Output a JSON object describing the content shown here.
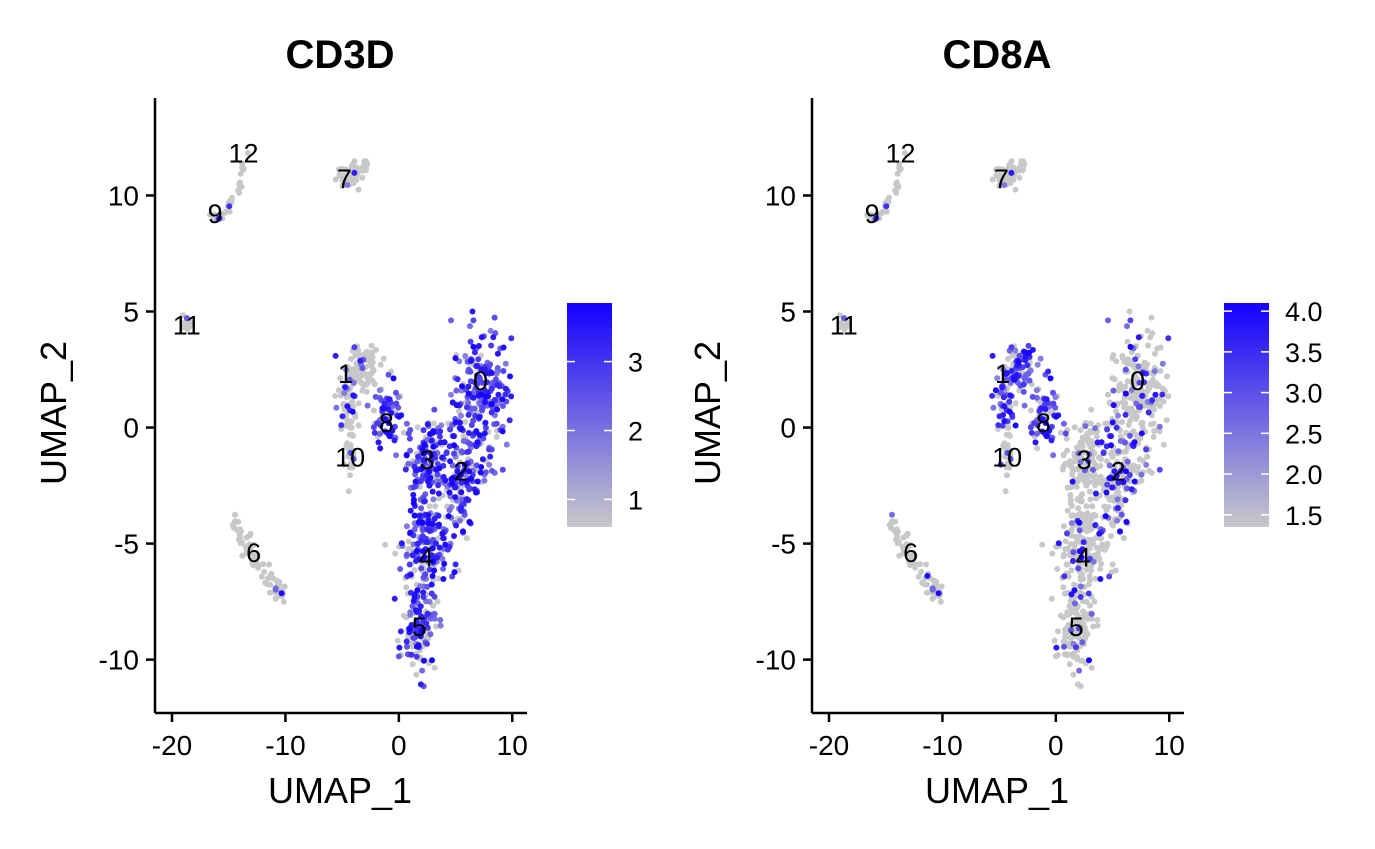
{
  "chart_data": [
    {
      "type": "scatter",
      "title": "CD3D",
      "xlabel": "UMAP_1",
      "ylabel": "UMAP_2",
      "xlim": [
        -21.5,
        11.3
      ],
      "ylim": [
        -12.3,
        14.2
      ],
      "xticks": [
        -20,
        -10,
        0,
        10
      ],
      "xtick_labels": [
        "-20",
        "-10",
        "0",
        "10"
      ],
      "yticks": [
        -10,
        -5,
        0,
        5,
        10
      ],
      "ytick_labels": [
        "-10",
        "-5",
        "0",
        "5",
        "10"
      ],
      "grid": false,
      "point_color_low": "#c8c8c8",
      "point_color_high": "#1400ff",
      "expression_range": [
        0.6,
        3.85
      ],
      "legend": {
        "position": "right",
        "ticks": [
          1,
          2,
          3
        ],
        "tick_labels": [
          "1",
          "2",
          "3"
        ]
      },
      "cluster_labels": [
        {
          "label": "0",
          "x": 7.2,
          "y": 2.0
        },
        {
          "label": "1",
          "x": -4.7,
          "y": 2.3
        },
        {
          "label": "2",
          "x": 5.5,
          "y": -1.9
        },
        {
          "label": "3",
          "x": 2.5,
          "y": -1.4
        },
        {
          "label": "4",
          "x": 2.4,
          "y": -5.6
        },
        {
          "label": "5",
          "x": 1.8,
          "y": -8.6
        },
        {
          "label": "6",
          "x": -12.8,
          "y": -5.4
        },
        {
          "label": "7",
          "x": -4.8,
          "y": 10.7
        },
        {
          "label": "8",
          "x": -1.1,
          "y": 0.2
        },
        {
          "label": "9",
          "x": -16.2,
          "y": 9.2
        },
        {
          "label": "10",
          "x": -4.3,
          "y": -1.3
        },
        {
          "label": "11",
          "x": -18.7,
          "y": 4.4
        },
        {
          "label": "12",
          "x": -13.7,
          "y": 11.8
        }
      ],
      "expression_by_cluster": {
        "0": 0.85,
        "1": 0.12,
        "2": 0.72,
        "3": 0.7,
        "4": 0.65,
        "5": 0.55,
        "6": 0.03,
        "7": 0.05,
        "8": 0.7,
        "9": 0.08,
        "10": 0.05,
        "11": 0.03,
        "12": 0.03
      }
    },
    {
      "type": "scatter",
      "title": "CD8A",
      "xlabel": "UMAP_1",
      "ylabel": "UMAP_2",
      "xlim": [
        -21.5,
        11.3
      ],
      "ylim": [
        -12.3,
        14.2
      ],
      "xticks": [
        -20,
        -10,
        0,
        10
      ],
      "xtick_labels": [
        "-20",
        "-10",
        "0",
        "10"
      ],
      "yticks": [
        -10,
        -5,
        0,
        5,
        10
      ],
      "ytick_labels": [
        "-10",
        "-5",
        "0",
        "5",
        "10"
      ],
      "grid": false,
      "point_color_low": "#c8c8c8",
      "point_color_high": "#1400ff",
      "expression_range": [
        1.35,
        4.1
      ],
      "legend": {
        "position": "right",
        "ticks": [
          1.5,
          2.0,
          2.5,
          3.0,
          3.5,
          4.0
        ],
        "tick_labels": [
          "1.5",
          "2.0",
          "2.5",
          "3.0",
          "3.5",
          "4.0"
        ]
      },
      "cluster_labels": [
        {
          "label": "0",
          "x": 7.2,
          "y": 2.0
        },
        {
          "label": "1",
          "x": -4.7,
          "y": 2.3
        },
        {
          "label": "2",
          "x": 5.5,
          "y": -1.9
        },
        {
          "label": "3",
          "x": 2.5,
          "y": -1.4
        },
        {
          "label": "4",
          "x": 2.4,
          "y": -5.6
        },
        {
          "label": "5",
          "x": 1.8,
          "y": -8.6
        },
        {
          "label": "6",
          "x": -12.8,
          "y": -5.4
        },
        {
          "label": "7",
          "x": -4.8,
          "y": 10.7
        },
        {
          "label": "8",
          "x": -1.1,
          "y": 0.2
        },
        {
          "label": "9",
          "x": -16.2,
          "y": 9.2
        },
        {
          "label": "10",
          "x": -4.3,
          "y": -1.3
        },
        {
          "label": "11",
          "x": -18.7,
          "y": 4.4
        },
        {
          "label": "12",
          "x": -13.7,
          "y": 11.8
        }
      ],
      "expression_by_cluster": {
        "0": 0.25,
        "1": 0.55,
        "2": 0.3,
        "3": 0.05,
        "4": 0.12,
        "5": 0.18,
        "6": 0.05,
        "7": 0.03,
        "8": 0.6,
        "9": 0.03,
        "10": 0.05,
        "11": 0.05,
        "12": 0.03
      }
    }
  ]
}
